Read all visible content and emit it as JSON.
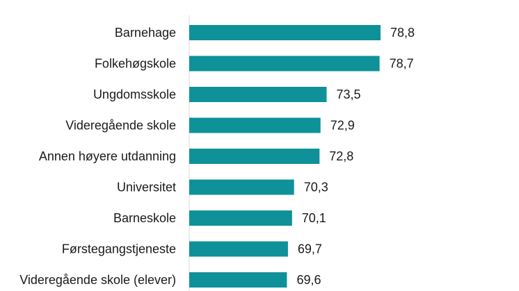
{
  "chart_data": {
    "type": "bar",
    "orientation": "horizontal",
    "title": "",
    "xlabel": "",
    "ylabel": "",
    "categories": [
      "Barnehage",
      "Folkehøgskole",
      "Ungdomsskole",
      "Videregående skole",
      "Annen høyere utdanning",
      "Universitet",
      "Barneskole",
      "Førstegangstjeneste",
      "Videregående skole (elever)"
    ],
    "values": [
      78.8,
      78.7,
      73.5,
      72.9,
      72.8,
      70.3,
      70.1,
      69.7,
      69.6
    ],
    "value_labels": [
      "78,8",
      "78,7",
      "73,5",
      "72,9",
      "72,8",
      "70,3",
      "70,1",
      "69,7",
      "69,6"
    ],
    "xlim": [
      60,
      80
    ],
    "bar_color": "#0e9199",
    "axis_color": "#d9d9d9",
    "grid": false,
    "legend": "none"
  }
}
